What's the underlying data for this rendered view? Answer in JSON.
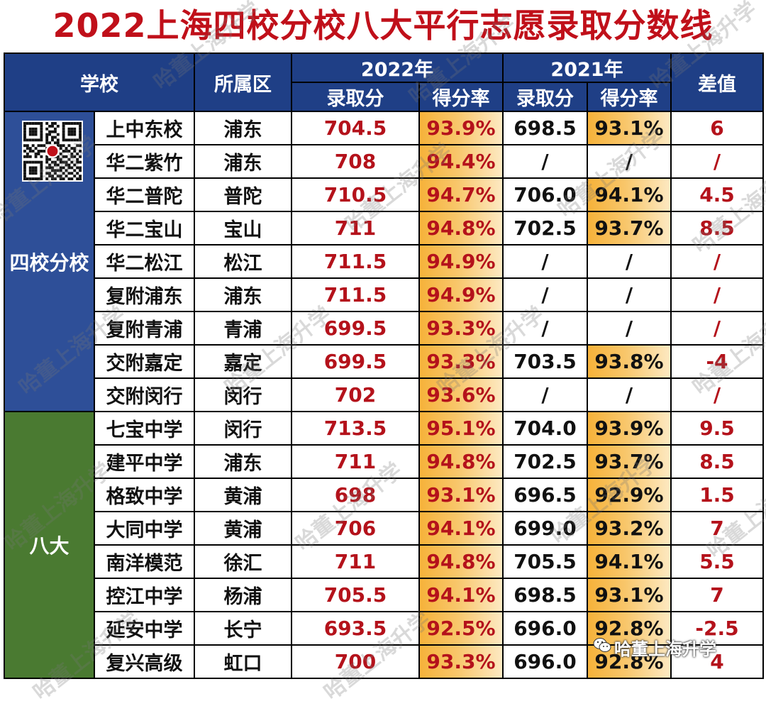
{
  "title": "2022上海四校分校八大平行志愿录取分数线",
  "header": {
    "school": "学校",
    "district": "所属区",
    "year_2022": "2022年",
    "year_2021": "2021年",
    "diff": "差值",
    "score": "录取分",
    "rate": "得分率"
  },
  "groups": {
    "sixiao": "四校分校",
    "bada": "八大"
  },
  "rows": [
    {
      "school": "上中东校",
      "district": "浦东",
      "s22": "704.5",
      "r22": "93.9%",
      "s21": "698.5",
      "r21": "93.1%",
      "diff": "6"
    },
    {
      "school": "华二紫竹",
      "district": "浦东",
      "s22": "708",
      "r22": "94.4%",
      "s21": "/",
      "r21": "/",
      "diff": "/"
    },
    {
      "school": "华二普陀",
      "district": "普陀",
      "s22": "710.5",
      "r22": "94.7%",
      "s21": "706.0",
      "r21": "94.1%",
      "diff": "4.5"
    },
    {
      "school": "华二宝山",
      "district": "宝山",
      "s22": "711",
      "r22": "94.8%",
      "s21": "702.5",
      "r21": "93.7%",
      "diff": "8.5"
    },
    {
      "school": "华二松江",
      "district": "松江",
      "s22": "711.5",
      "r22": "94.9%",
      "s21": "/",
      "r21": "/",
      "diff": "/"
    },
    {
      "school": "复附浦东",
      "district": "浦东",
      "s22": "711.5",
      "r22": "94.9%",
      "s21": "/",
      "r21": "/",
      "diff": "/"
    },
    {
      "school": "复附青浦",
      "district": "青浦",
      "s22": "699.5",
      "r22": "93.3%",
      "s21": "/",
      "r21": "/",
      "diff": "/"
    },
    {
      "school": "交附嘉定",
      "district": "嘉定",
      "s22": "699.5",
      "r22": "93.3%",
      "s21": "703.5",
      "r21": "93.8%",
      "diff": "-4"
    },
    {
      "school": "交附闵行",
      "district": "闵行",
      "s22": "702",
      "r22": "93.6%",
      "s21": "/",
      "r21": "/",
      "diff": "/"
    },
    {
      "school": "七宝中学",
      "district": "闵行",
      "s22": "713.5",
      "r22": "95.1%",
      "s21": "704.0",
      "r21": "93.9%",
      "diff": "9.5"
    },
    {
      "school": "建平中学",
      "district": "浦东",
      "s22": "711",
      "r22": "94.8%",
      "s21": "702.5",
      "r21": "93.7%",
      "diff": "8.5"
    },
    {
      "school": "格致中学",
      "district": "黄浦",
      "s22": "698",
      "r22": "93.1%",
      "s21": "696.5",
      "r21": "92.9%",
      "diff": "1.5"
    },
    {
      "school": "大同中学",
      "district": "黄浦",
      "s22": "706",
      "r22": "94.1%",
      "s21": "699.0",
      "r21": "93.2%",
      "diff": "7"
    },
    {
      "school": "南洋模范",
      "district": "徐汇",
      "s22": "711",
      "r22": "94.8%",
      "s21": "705.5",
      "r21": "94.1%",
      "diff": "5.5"
    },
    {
      "school": "控江中学",
      "district": "杨浦",
      "s22": "705.5",
      "r22": "94.1%",
      "s21": "698.5",
      "r21": "93.1%",
      "diff": "7"
    },
    {
      "school": "延安中学",
      "district": "长宁",
      "s22": "693.5",
      "r22": "92.5%",
      "s21": "696.0",
      "r21": "92.8%",
      "diff": "-2.5"
    },
    {
      "school": "复兴高级",
      "district": "虹口",
      "s22": "700",
      "r22": "93.3%",
      "s21": "696.0",
      "r21": "92.8%",
      "diff": "4"
    }
  ],
  "watermark_text": "哈董上海升学",
  "brand": "哈董上海升学",
  "colors": {
    "title": "#c0101a",
    "header_bg": "#1f3f86",
    "group_blue": "#2e4f98",
    "group_green": "#4a7a31",
    "highlight": "#f6b23a",
    "value_red": "#b4121b"
  }
}
